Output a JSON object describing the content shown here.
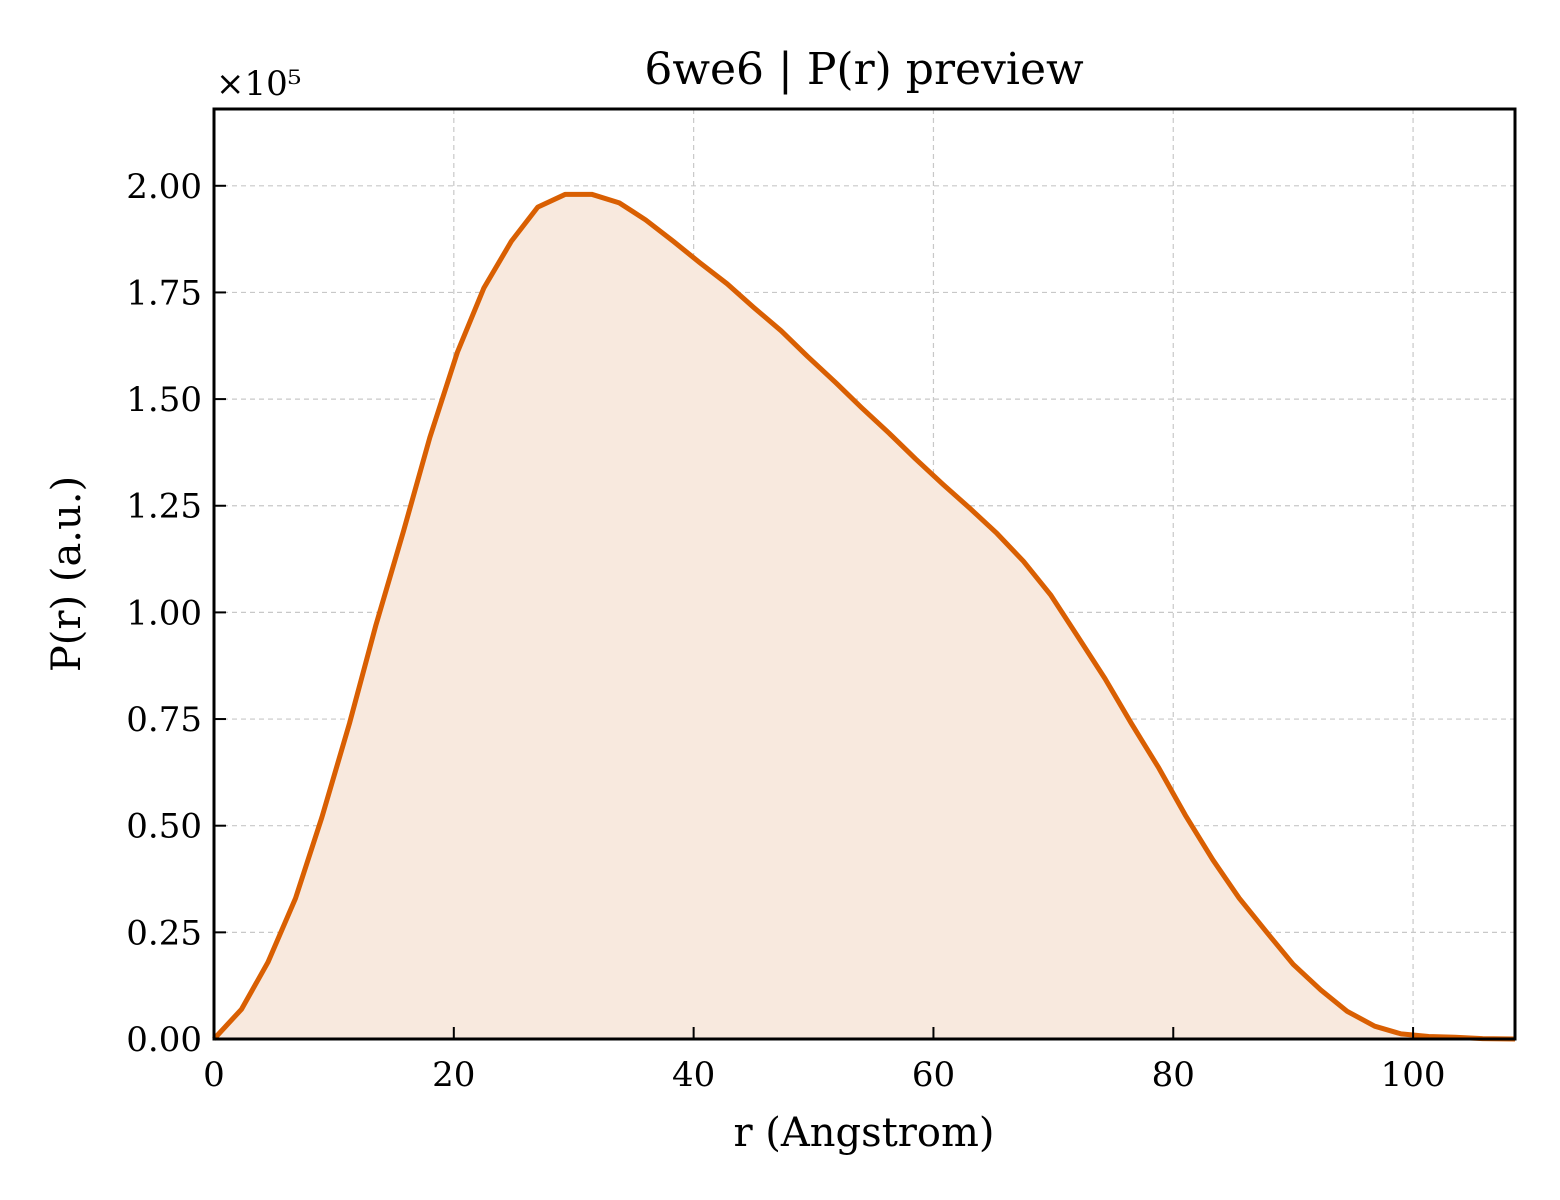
{
  "chart_data": {
    "type": "area",
    "title": "6we6 | P(r) preview",
    "xlabel": "r (Angstrom)",
    "ylabel": "P(r) (a.u.)",
    "y_offset_label": "×10⁵",
    "xlim": [
      0,
      108.5
    ],
    "ylim": [
      0,
      2.18
    ],
    "xticks": [
      0,
      20,
      40,
      60,
      80,
      100
    ],
    "xtick_labels": [
      "0",
      "20",
      "40",
      "60",
      "80",
      "100"
    ],
    "yticks": [
      0,
      0.25,
      0.5,
      0.75,
      1.0,
      1.25,
      1.5,
      1.75,
      2.0
    ],
    "ytick_labels": [
      "0.00",
      "0.25",
      "0.50",
      "0.75",
      "1.00",
      "1.25",
      "1.50",
      "1.75",
      "2.00"
    ],
    "grid": true,
    "line_color": "#d95f02",
    "fill_color": "#f8e9de",
    "series": [
      {
        "x": [
          0,
          2.3,
          4.5,
          6.8,
          9.0,
          11.3,
          13.5,
          15.8,
          18.0,
          20.3,
          22.5,
          24.8,
          27.0,
          29.3,
          31.5,
          33.8,
          36.0,
          38.3,
          40.5,
          42.8,
          45.0,
          47.3,
          49.5,
          51.8,
          54.0,
          56.3,
          58.5,
          60.8,
          63.0,
          65.3,
          67.5,
          69.8,
          72.0,
          74.3,
          76.5,
          78.8,
          81.0,
          83.3,
          85.5,
          87.8,
          90.0,
          92.3,
          94.5,
          96.8,
          99.0,
          101.3,
          103.5,
          105.8,
          108.5
        ],
        "y": [
          0.0,
          0.07,
          0.18,
          0.33,
          0.52,
          0.74,
          0.97,
          1.19,
          1.41,
          1.61,
          1.76,
          1.87,
          1.95,
          1.98,
          1.98,
          1.96,
          1.92,
          1.87,
          1.82,
          1.77,
          1.715,
          1.66,
          1.6,
          1.54,
          1.48,
          1.42,
          1.36,
          1.3,
          1.245,
          1.185,
          1.12,
          1.04,
          0.945,
          0.845,
          0.74,
          0.635,
          0.525,
          0.42,
          0.33,
          0.25,
          0.175,
          0.115,
          0.065,
          0.03,
          0.012,
          0.006,
          0.004,
          0.001,
          0.0
        ]
      }
    ]
  }
}
